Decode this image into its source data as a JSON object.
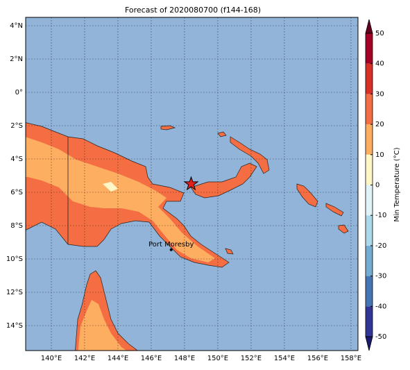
{
  "map": {
    "title": "Forecast of 2020080700 (f144-168)",
    "xlim": [
      138.46,
      158.42
    ],
    "ylim": [
      -15.5,
      4.5
    ],
    "lon_ticks": [
      {
        "value": 140,
        "label": "140°E"
      },
      {
        "value": 142,
        "label": "142°E"
      },
      {
        "value": 144,
        "label": "144°E"
      },
      {
        "value": 146,
        "label": "146°E"
      },
      {
        "value": 148,
        "label": "148°E"
      },
      {
        "value": 150,
        "label": "150°E"
      },
      {
        "value": 152,
        "label": "152°E"
      },
      {
        "value": 154,
        "label": "154°E"
      },
      {
        "value": 156,
        "label": "156°E"
      },
      {
        "value": 158,
        "label": "158°E"
      }
    ],
    "lat_ticks": [
      {
        "value": 4,
        "label": "4°N"
      },
      {
        "value": 2,
        "label": "2°N"
      },
      {
        "value": 0,
        "label": "0°"
      },
      {
        "value": -2,
        "label": "2°S"
      },
      {
        "value": -4,
        "label": "4°S"
      },
      {
        "value": -6,
        "label": "6°S"
      },
      {
        "value": -8,
        "label": "8°S"
      },
      {
        "value": -10,
        "label": "10°S"
      },
      {
        "value": -12,
        "label": "12°S"
      },
      {
        "value": -14,
        "label": "14°S"
      }
    ],
    "cities": [
      {
        "name": "Port Moresby",
        "lon": 147.2,
        "lat": -9.45
      }
    ],
    "marker": {
      "lon": 148.4,
      "lat": -5.5
    },
    "colorbar": {
      "label": "Min Temperature (°C)",
      "ticks": [
        -50,
        -40,
        -30,
        -20,
        -10,
        0,
        10,
        20,
        30,
        40,
        50
      ],
      "colors": [
        "#313695",
        "#4575b4",
        "#74add1",
        "#abd9e9",
        "#e0f3f8",
        "#fff6c8",
        "#fdae61",
        "#f46d43",
        "#d73027",
        "#a50026"
      ]
    }
  }
}
